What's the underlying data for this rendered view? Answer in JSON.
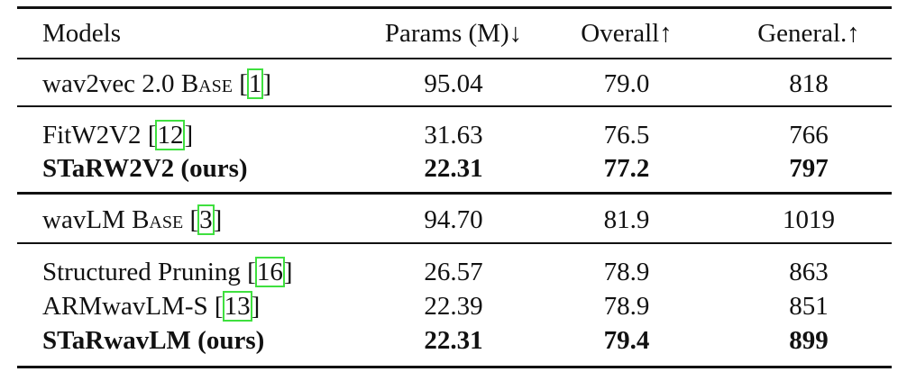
{
  "table": {
    "header": [
      "Models",
      "Params (M)↓",
      "Overall↑",
      "General.↑"
    ],
    "groups": [
      [
        {
          "model": "wav2vec 2.0 ",
          "model_sc": "Base",
          "cite": "[1]",
          "cells": [
            "95.04",
            "79.0",
            "818"
          ]
        }
      ],
      [
        {
          "model": "FitW2V2 ",
          "cite": "[12]",
          "cells": [
            "31.63",
            "76.5",
            "766"
          ]
        },
        {
          "model": "STaRW2V2 (ours)",
          "bold": true,
          "cells": [
            "22.31",
            "77.2",
            "797"
          ]
        }
      ],
      [
        {
          "model": "wavLM ",
          "model_sc": "Base",
          "cite": "[3]",
          "cells": [
            "94.70",
            "81.9",
            "1019"
          ]
        }
      ],
      [
        {
          "model": "Structured Pruning ",
          "cite": "[16]",
          "cells": [
            "26.57",
            "78.9",
            "863"
          ]
        },
        {
          "model": "ARMwavLM-S ",
          "cite": "[13]",
          "cells": [
            "22.39",
            "78.9",
            "851"
          ]
        },
        {
          "model": "STaRwavLM (ours)",
          "bold": true,
          "cells": [
            "22.31",
            "79.4",
            "899"
          ]
        }
      ]
    ]
  }
}
